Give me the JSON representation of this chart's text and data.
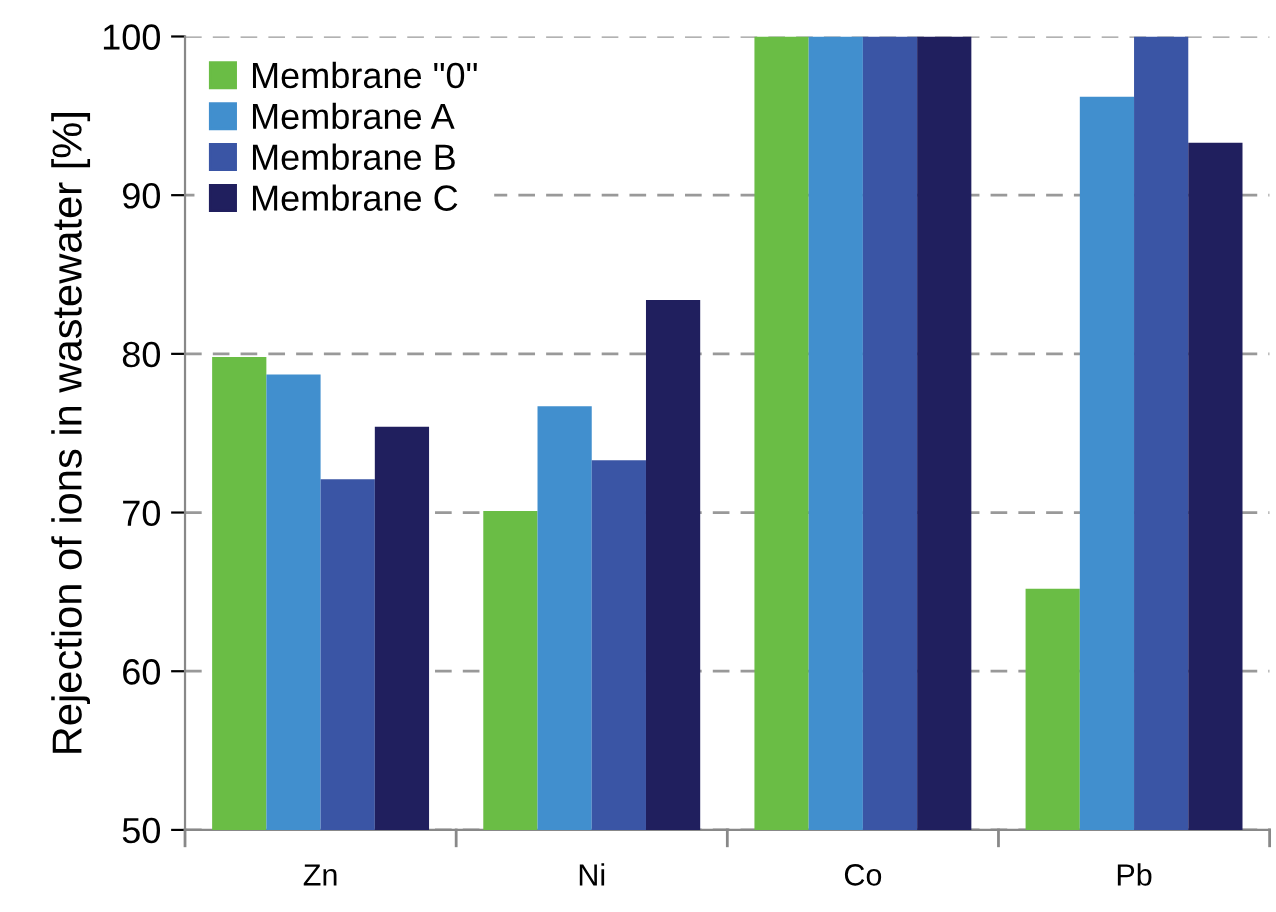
{
  "chart_data": {
    "type": "bar",
    "ylabel": "Rejection of ions in wastewater [%]",
    "categories": [
      "Zn",
      "Ni",
      "Co",
      "Pb"
    ],
    "series": [
      {
        "name": "Membrane \"0\"",
        "color": "#6abd45",
        "values": [
          79.8,
          70.1,
          100,
          65.2
        ]
      },
      {
        "name": "Membrane A",
        "color": "#418fce",
        "values": [
          78.7,
          76.7,
          100,
          96.2
        ]
      },
      {
        "name": "Membrane B",
        "color": "#3a55a5",
        "values": [
          72.1,
          73.3,
          100,
          100
        ]
      },
      {
        "name": "Membrane C",
        "color": "#201f5e",
        "values": [
          75.4,
          83.4,
          100,
          93.3
        ]
      }
    ],
    "ylim": [
      50,
      100
    ],
    "yticks": [
      50,
      60,
      70,
      80,
      90,
      100
    ],
    "grid": "y",
    "legend": "top left"
  }
}
